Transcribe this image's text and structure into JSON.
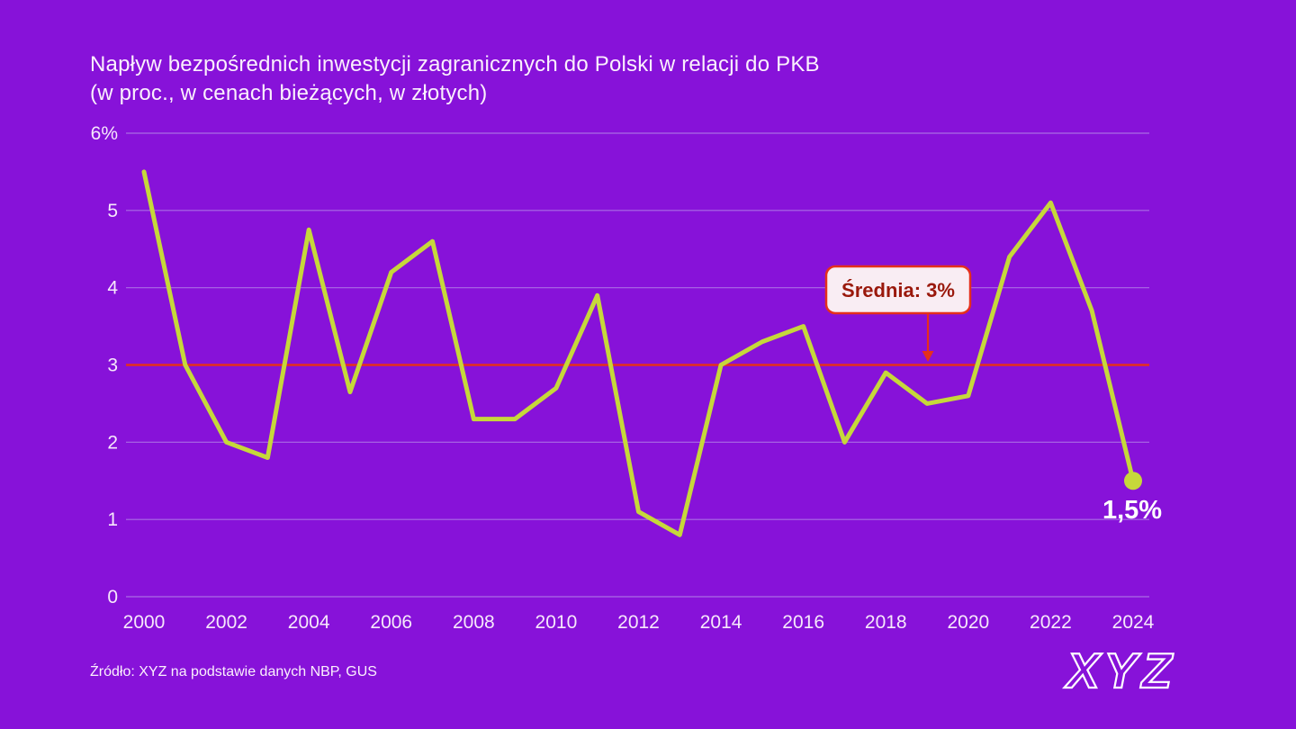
{
  "title": {
    "line1": "Napływ bezpośrednich inwestycji zagranicznych do Polski w relacji do PKB",
    "line2": "(w proc., w cenach bieżących, w złotych)"
  },
  "source": "Źródło: XYZ na podstawie danych NBP, GUS",
  "logo": "XYZ",
  "colors": {
    "background": "#8712d9",
    "line": "#c6d83a",
    "average_line": "#e5301c",
    "grid": "#aa6ce4",
    "text": "#f6e8fb",
    "annotation_fill": "#f9edf3",
    "annotation_text": "#9a190c",
    "end_label": "#ffffff"
  },
  "chart_data": {
    "type": "line",
    "title": "Napływ bezpośrednich inwestycji zagranicznych do Polski w relacji do PKB (w proc., w cenach bieżących, w złotych)",
    "x": [
      2000,
      2001,
      2002,
      2003,
      2004,
      2005,
      2006,
      2007,
      2008,
      2009,
      2010,
      2011,
      2012,
      2013,
      2014,
      2015,
      2016,
      2017,
      2018,
      2019,
      2020,
      2021,
      2022,
      2023,
      2024
    ],
    "values": [
      5.5,
      3.0,
      2.0,
      1.8,
      4.75,
      2.65,
      4.2,
      4.6,
      2.3,
      2.3,
      2.7,
      3.9,
      1.1,
      0.8,
      3.0,
      3.3,
      3.5,
      2.0,
      2.9,
      2.5,
      2.6,
      4.4,
      5.1,
      3.7,
      1.5
    ],
    "xlabel": "",
    "ylabel": "",
    "ylim": [
      0,
      6
    ],
    "grid": true,
    "legend": "none",
    "y_ticks": [
      "6%",
      "5",
      "4",
      "3",
      "2",
      "1",
      "0"
    ],
    "x_tick_labels": [
      "2000",
      "2002",
      "2004",
      "2006",
      "2008",
      "2010",
      "2012",
      "2014",
      "2016",
      "2018",
      "2020",
      "2022",
      "2024"
    ],
    "average": {
      "value": 3,
      "label": "Średnia: 3%"
    },
    "last_point_label": "1,5%"
  }
}
